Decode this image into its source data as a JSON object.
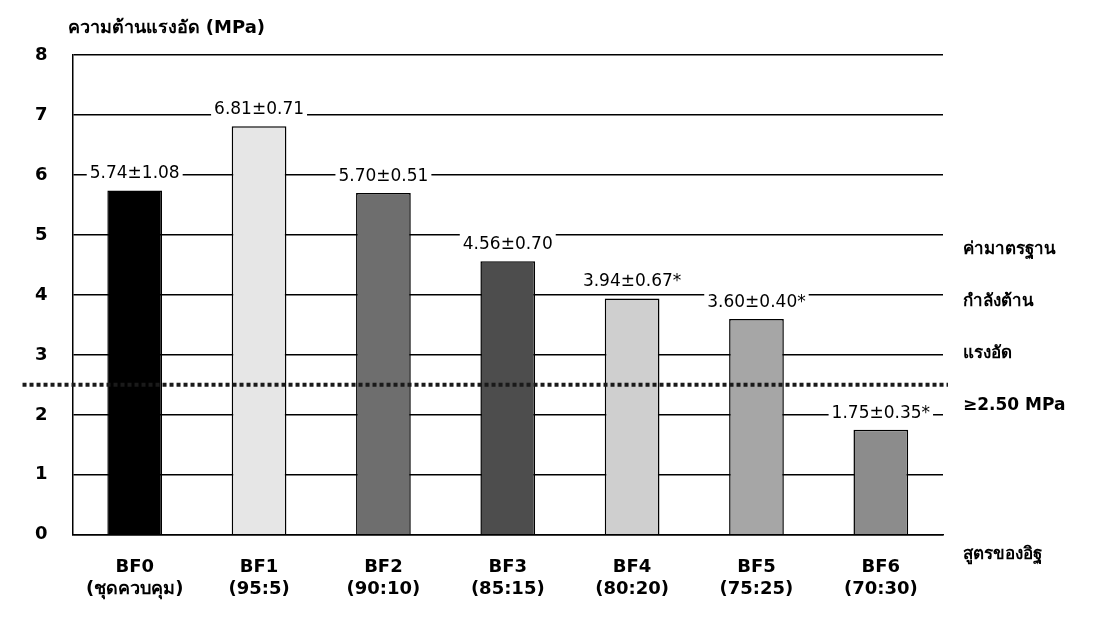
{
  "chart_data": {
    "type": "bar",
    "ylabel": "ความต้านแรงอัด (MPa)",
    "xlabel": "สูตรของอิฐ",
    "categories": [
      "BF0 (ชุดควบคุม)",
      "BF1 (95:5)",
      "BF2 (90:10)",
      "BF3 (85:15)",
      "BF4 (80:20)",
      "BF5 (75:25)",
      "BF6 (70:30)"
    ],
    "values": [
      5.74,
      6.81,
      5.7,
      4.56,
      3.94,
      3.6,
      1.75
    ],
    "value_labels": [
      "5.74±1.08",
      "6.81±0.71",
      "5.70±0.51",
      "4.56±0.70",
      "3.94±0.67*",
      "3.60±0.40*",
      "1.75±0.35*"
    ],
    "colors": [
      "#000000",
      "#e6e6e6",
      "#6e6e6e",
      "#4d4d4d",
      "#cfcfcf",
      "#a6a6a6",
      "#8c8c8c"
    ],
    "ylim": [
      0,
      8
    ],
    "yticks": [
      0,
      1,
      2,
      3,
      4,
      5,
      6,
      7,
      8
    ],
    "grid": "y",
    "legend": false,
    "ref_lines": [
      {
        "axis": "y",
        "value": 2.5,
        "label": "ค่ามาตรฐาน\nกำลังต้าน\nแรงอัด\n≥2.50 MPa",
        "color": "#1a1a1a",
        "line_style": "dotted"
      }
    ]
  }
}
